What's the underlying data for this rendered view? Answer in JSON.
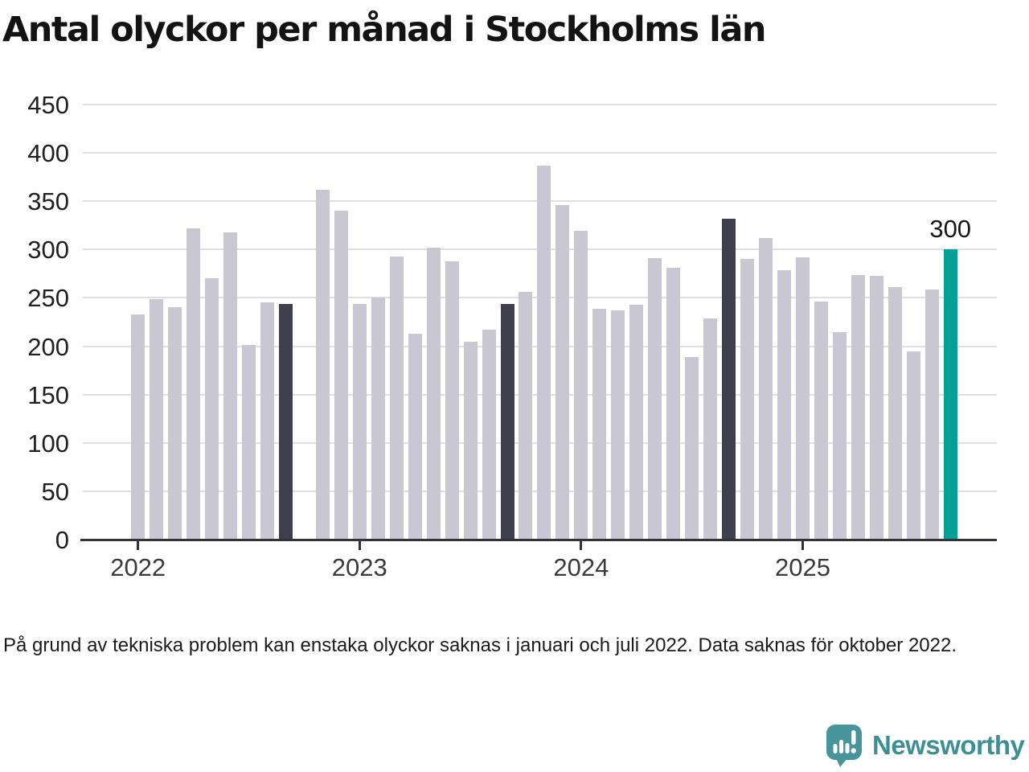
{
  "title": "Antal olyckor per månad i Stockholms län",
  "footnote": "På grund av tekniska problem kan enstaka olyckor saknas i januari och juli 2022. Data saknas för oktober 2022.",
  "branding": {
    "name": "Newsworthy",
    "icon": "newsworthy-speech-bubble-bar-chart-icon",
    "text_color": "#3d8f96",
    "icon_color": "#45959b"
  },
  "chart_data": {
    "type": "bar",
    "title": "Antal olyckor per månad i Stockholms län",
    "xlabel": "",
    "ylabel": "",
    "ylim": [
      0,
      450
    ],
    "yticks": [
      0,
      50,
      100,
      150,
      200,
      250,
      300,
      350,
      400,
      450
    ],
    "grid": true,
    "categories": [
      "2022-01",
      "2022-02",
      "2022-03",
      "2022-04",
      "2022-05",
      "2022-06",
      "2022-07",
      "2022-08",
      "2022-09",
      "2022-10",
      "2022-11",
      "2022-12",
      "2023-01",
      "2023-02",
      "2023-03",
      "2023-04",
      "2023-05",
      "2023-06",
      "2023-07",
      "2023-08",
      "2023-09",
      "2023-10",
      "2023-11",
      "2023-12",
      "2024-01",
      "2024-02",
      "2024-03",
      "2024-04",
      "2024-05",
      "2024-06",
      "2024-07",
      "2024-08",
      "2024-09",
      "2024-10",
      "2024-11",
      "2024-12",
      "2025-01",
      "2025-02",
      "2025-03",
      "2025-04",
      "2025-05",
      "2025-06",
      "2025-07",
      "2025-08",
      "2025-09"
    ],
    "values": [
      233,
      249,
      240,
      322,
      270,
      318,
      201,
      245,
      244,
      null,
      362,
      340,
      244,
      250,
      293,
      213,
      302,
      288,
      205,
      217,
      244,
      256,
      387,
      346,
      319,
      239,
      237,
      243,
      291,
      281,
      189,
      229,
      332,
      290,
      312,
      279,
      292,
      246,
      215,
      274,
      273,
      261,
      195,
      259,
      300
    ],
    "missing_months": [
      "2022-10"
    ],
    "highlighted_dark_months": [
      "2022-09",
      "2023-09",
      "2024-09"
    ],
    "highlighted_accent_months": [
      "2025-09"
    ],
    "annotation": {
      "month": "2025-09",
      "label": "300"
    },
    "xticks": [
      {
        "label": "2022",
        "month": "2022-01"
      },
      {
        "label": "2023",
        "month": "2023-01"
      },
      {
        "label": "2024",
        "month": "2024-01"
      },
      {
        "label": "2025",
        "month": "2025-01"
      }
    ],
    "legend_position": "none",
    "colors": {
      "default": "#c9c7d1",
      "dark": "#3f3e4d",
      "accent": "#04a096",
      "gridline": "#e0e0e2",
      "axis": "#33323c"
    }
  }
}
